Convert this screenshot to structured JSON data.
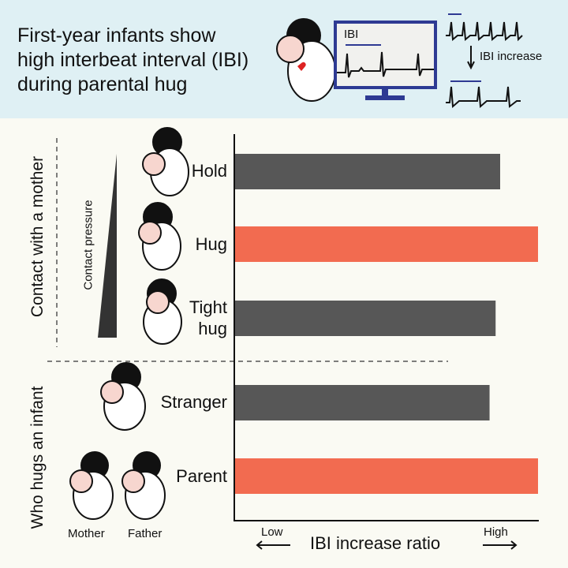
{
  "header": {
    "title": "First-year infants show\nhigh interbeat interval (IBI)\nduring parental hug",
    "monitor_label": "IBI",
    "change_label": "IBI increase"
  },
  "groups": {
    "contact": "Contact with a mother",
    "who": "Who hugs an infant",
    "pressure": "Contact pressure"
  },
  "figure_labels": {
    "mother": "Mother",
    "father": "Father"
  },
  "chart_data": {
    "type": "bar",
    "orientation": "horizontal",
    "categories": [
      "Hold",
      "Hug",
      "Tight hug",
      "Stranger",
      "Parent"
    ],
    "values": [
      0.875,
      1.0,
      0.86,
      0.84,
      1.0
    ],
    "colors": [
      "#575757",
      "#f26b50",
      "#575757",
      "#575757",
      "#f26b50"
    ],
    "xlabel": "IBI increase ratio",
    "xlow": "Low",
    "xhigh": "High",
    "xlim": [
      0,
      1
    ]
  },
  "colors": {
    "highlight": "#f26b50",
    "neutral": "#575757",
    "header_bg": "#dff0f4",
    "monitor": "#2e3a93"
  }
}
